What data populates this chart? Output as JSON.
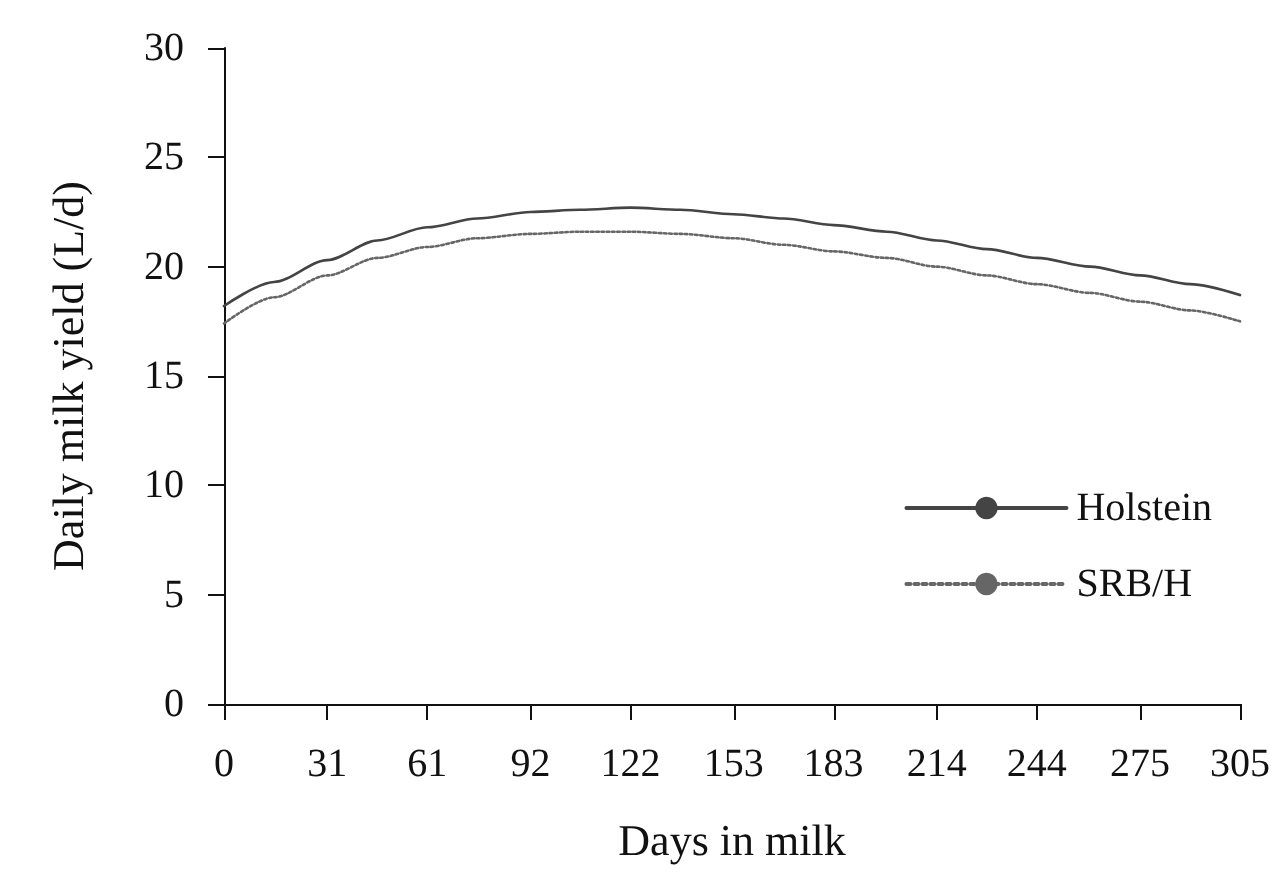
{
  "chart_data": {
    "type": "line",
    "xlabel": "Days in milk",
    "ylabel": "Daily milk yield (L/d)",
    "xlim": [
      0,
      305
    ],
    "xticks": [
      0,
      31,
      61,
      92,
      122,
      153,
      183,
      214,
      244,
      275,
      305
    ],
    "ylim": [
      0,
      30
    ],
    "yticks": [
      0,
      5,
      10,
      15,
      20,
      25,
      30
    ],
    "grid": false,
    "legend": "bottom right",
    "marker": "none",
    "series": [
      {
        "name": "Holstein",
        "color": "#444444",
        "line_style": "solid",
        "x": [
          0,
          15,
          31,
          46,
          61,
          76,
          92,
          107,
          122,
          137,
          153,
          168,
          183,
          199,
          214,
          229,
          244,
          260,
          275,
          290,
          305
        ],
        "values": [
          18.2,
          19.3,
          20.3,
          21.2,
          21.8,
          22.2,
          22.5,
          22.6,
          22.7,
          22.6,
          22.4,
          22.2,
          21.9,
          21.6,
          21.2,
          20.8,
          20.4,
          20.0,
          19.6,
          19.2,
          18.7
        ]
      },
      {
        "name": "SRB/H",
        "color": "#666666",
        "line_style": "dotted",
        "x": [
          0,
          15,
          31,
          46,
          61,
          76,
          92,
          107,
          122,
          137,
          153,
          168,
          183,
          199,
          214,
          229,
          244,
          260,
          275,
          290,
          305
        ],
        "values": [
          17.4,
          18.6,
          19.6,
          20.4,
          20.9,
          21.3,
          21.5,
          21.6,
          21.6,
          21.5,
          21.3,
          21.0,
          20.7,
          20.4,
          20.0,
          19.6,
          19.2,
          18.8,
          18.4,
          18.0,
          17.5
        ]
      }
    ]
  }
}
